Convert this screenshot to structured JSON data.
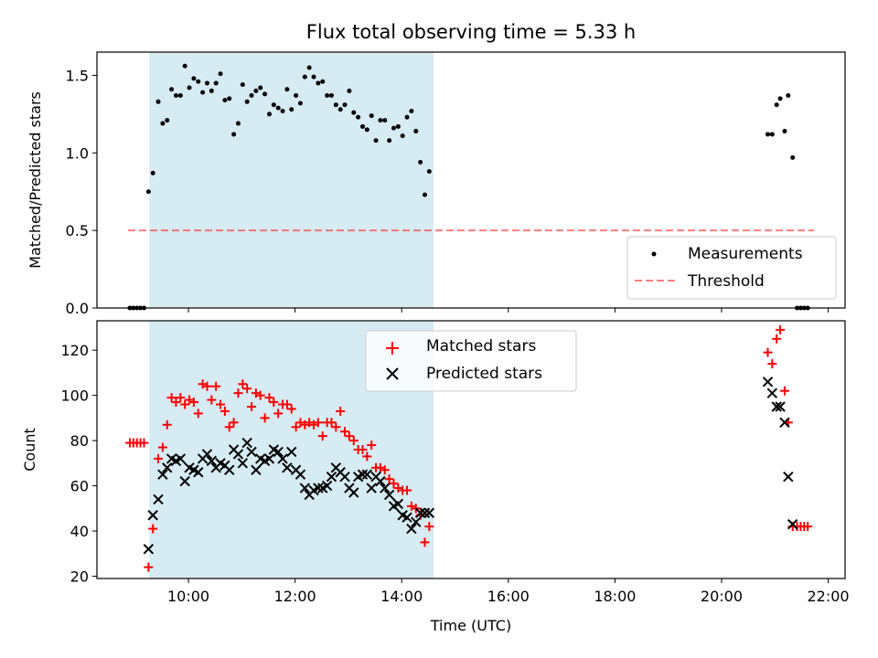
{
  "colors": {
    "shade": "#add8e6",
    "measurement": "#000000",
    "threshold": "#ff0000",
    "matched": "#ff0000",
    "predicted": "#000000"
  },
  "chart_data": [
    {
      "type": "scatter",
      "title": "Flux total observing time = 5.33 h",
      "xlabel": "",
      "ylabel": "Matched/Predicted stars",
      "xlim": [
        "08:17",
        "22:19"
      ],
      "ylim": [
        0,
        1.65
      ],
      "yticks": [
        "0.0",
        "0.5",
        "1.0",
        "1.5"
      ],
      "shaded_interval": [
        "09:16",
        "14:36"
      ],
      "legend": {
        "position": "lower right",
        "entries": [
          "Measurements",
          "Threshold"
        ]
      },
      "threshold": {
        "name": "Threshold",
        "x": [
          "08:52",
          "21:44"
        ],
        "y": 0.5
      },
      "series": [
        {
          "name": "Measurements",
          "marker": "dot",
          "points": [
            [
              "08:54",
              0.0
            ],
            [
              "08:58",
              0.0
            ],
            [
              "09:02",
              0.0
            ],
            [
              "09:06",
              0.0
            ],
            [
              "09:10",
              0.0
            ],
            [
              "09:15",
              0.75
            ],
            [
              "09:20",
              0.87
            ],
            [
              "09:26",
              1.33
            ],
            [
              "09:31",
              1.19
            ],
            [
              "09:36",
              1.21
            ],
            [
              "09:41",
              1.41
            ],
            [
              "09:46",
              1.37
            ],
            [
              "09:51",
              1.37
            ],
            [
              "09:56",
              1.56
            ],
            [
              "10:01",
              1.42
            ],
            [
              "10:06",
              1.48
            ],
            [
              "10:11",
              1.46
            ],
            [
              "10:16",
              1.39
            ],
            [
              "10:21",
              1.45
            ],
            [
              "10:26",
              1.4
            ],
            [
              "10:31",
              1.45
            ],
            [
              "10:36",
              1.51
            ],
            [
              "10:41",
              1.34
            ],
            [
              "10:46",
              1.35
            ],
            [
              "10:51",
              1.12
            ],
            [
              "10:56",
              1.19
            ],
            [
              "11:01",
              1.44
            ],
            [
              "11:06",
              1.33
            ],
            [
              "11:11",
              1.37
            ],
            [
              "11:16",
              1.4
            ],
            [
              "11:21",
              1.42
            ],
            [
              "11:26",
              1.38
            ],
            [
              "11:31",
              1.25
            ],
            [
              "11:36",
              1.31
            ],
            [
              "11:41",
              1.29
            ],
            [
              "11:46",
              1.27
            ],
            [
              "11:51",
              1.41
            ],
            [
              "11:56",
              1.28
            ],
            [
              "12:01",
              1.37
            ],
            [
              "12:06",
              1.32
            ],
            [
              "12:11",
              1.49
            ],
            [
              "12:16",
              1.55
            ],
            [
              "12:21",
              1.49
            ],
            [
              "12:26",
              1.45
            ],
            [
              "12:31",
              1.46
            ],
            [
              "12:36",
              1.37
            ],
            [
              "12:41",
              1.37
            ],
            [
              "12:46",
              1.31
            ],
            [
              "12:51",
              1.28
            ],
            [
              "12:56",
              1.31
            ],
            [
              "13:01",
              1.4
            ],
            [
              "13:06",
              1.26
            ],
            [
              "13:11",
              1.23
            ],
            [
              "13:16",
              1.17
            ],
            [
              "13:21",
              1.15
            ],
            [
              "13:26",
              1.24
            ],
            [
              "13:31",
              1.08
            ],
            [
              "13:36",
              1.21
            ],
            [
              "13:41",
              1.21
            ],
            [
              "13:46",
              1.08
            ],
            [
              "13:51",
              1.16
            ],
            [
              "13:56",
              1.17
            ],
            [
              "14:01",
              1.11
            ],
            [
              "14:06",
              1.23
            ],
            [
              "14:11",
              1.27
            ],
            [
              "14:16",
              1.14
            ],
            [
              "14:21",
              0.94
            ],
            [
              "14:26",
              0.73
            ],
            [
              "14:31",
              0.88
            ],
            [
              "20:52",
              1.12
            ],
            [
              "20:57",
              1.12
            ],
            [
              "21:02",
              1.31
            ],
            [
              "21:06",
              1.35
            ],
            [
              "21:11",
              1.14
            ],
            [
              "21:15",
              1.37
            ],
            [
              "21:20",
              0.97
            ],
            [
              "21:25",
              0.0
            ],
            [
              "21:29",
              0.0
            ],
            [
              "21:33",
              0.0
            ],
            [
              "21:37",
              0.0
            ]
          ]
        }
      ]
    },
    {
      "type": "scatter",
      "title": "",
      "xlabel": "Time (UTC)",
      "ylabel": "Count",
      "xlim": [
        "08:17",
        "22:19"
      ],
      "ylim": [
        19,
        133
      ],
      "yticks": [
        "20",
        "40",
        "60",
        "80",
        "100",
        "120"
      ],
      "xticks": [
        "10:00",
        "12:00",
        "14:00",
        "16:00",
        "18:00",
        "20:00",
        "22:00"
      ],
      "shaded_interval": [
        "09:16",
        "14:36"
      ],
      "legend": {
        "position": "upper center",
        "entries": [
          "Matched stars",
          "Predicted stars"
        ]
      },
      "series": [
        {
          "name": "Matched stars",
          "marker": "plus",
          "points": [
            [
              "08:54",
              79
            ],
            [
              "08:58",
              79
            ],
            [
              "09:02",
              79
            ],
            [
              "09:06",
              79
            ],
            [
              "09:10",
              79
            ],
            [
              "09:15",
              24
            ],
            [
              "09:20",
              41
            ],
            [
              "09:26",
              72
            ],
            [
              "09:31",
              77
            ],
            [
              "09:36",
              87
            ],
            [
              "09:41",
              99
            ],
            [
              "09:46",
              97
            ],
            [
              "09:51",
              99
            ],
            [
              "09:56",
              96
            ],
            [
              "10:01",
              98
            ],
            [
              "10:06",
              97
            ],
            [
              "10:11",
              92
            ],
            [
              "10:16",
              105
            ],
            [
              "10:21",
              104
            ],
            [
              "10:26",
              98
            ],
            [
              "10:31",
              104
            ],
            [
              "10:36",
              96
            ],
            [
              "10:41",
              93
            ],
            [
              "10:46",
              86
            ],
            [
              "10:51",
              88
            ],
            [
              "10:56",
              101
            ],
            [
              "11:01",
              105
            ],
            [
              "11:06",
              103
            ],
            [
              "11:11",
              95
            ],
            [
              "11:16",
              101
            ],
            [
              "11:21",
              100
            ],
            [
              "11:26",
              90
            ],
            [
              "11:31",
              99
            ],
            [
              "11:36",
              97
            ],
            [
              "11:41",
              92
            ],
            [
              "11:46",
              96
            ],
            [
              "11:51",
              96
            ],
            [
              "11:56",
              94
            ],
            [
              "12:01",
              86
            ],
            [
              "12:06",
              88
            ],
            [
              "12:11",
              87
            ],
            [
              "12:16",
              88
            ],
            [
              "12:21",
              87
            ],
            [
              "12:26",
              88
            ],
            [
              "12:31",
              82
            ],
            [
              "12:36",
              88
            ],
            [
              "12:41",
              88
            ],
            [
              "12:46",
              86
            ],
            [
              "12:51",
              93
            ],
            [
              "12:56",
              84
            ],
            [
              "13:01",
              82
            ],
            [
              "13:06",
              80
            ],
            [
              "13:11",
              76
            ],
            [
              "13:16",
              76
            ],
            [
              "13:21",
              73
            ],
            [
              "13:26",
              78
            ],
            [
              "13:31",
              68
            ],
            [
              "13:36",
              68
            ],
            [
              "13:41",
              67
            ],
            [
              "13:46",
              63
            ],
            [
              "13:51",
              61
            ],
            [
              "13:56",
              59
            ],
            [
              "14:01",
              58
            ],
            [
              "14:06",
              58
            ],
            [
              "14:11",
              51
            ],
            [
              "14:16",
              50
            ],
            [
              "14:21",
              47
            ],
            [
              "14:26",
              35
            ],
            [
              "14:31",
              42
            ],
            [
              "20:52",
              119
            ],
            [
              "20:57",
              114
            ],
            [
              "21:02",
              125
            ],
            [
              "21:06",
              129
            ],
            [
              "21:11",
              102
            ],
            [
              "21:15",
              88
            ],
            [
              "21:20",
              42
            ],
            [
              "21:25",
              42
            ],
            [
              "21:29",
              42
            ],
            [
              "21:33",
              42
            ],
            [
              "21:37",
              42
            ]
          ]
        },
        {
          "name": "Predicted stars",
          "marker": "x",
          "points": [
            [
              "09:15",
              32
            ],
            [
              "09:20",
              47
            ],
            [
              "09:26",
              54
            ],
            [
              "09:31",
              65
            ],
            [
              "09:36",
              68
            ],
            [
              "09:41",
              72
            ],
            [
              "09:46",
              71
            ],
            [
              "09:51",
              72
            ],
            [
              "09:56",
              62
            ],
            [
              "10:01",
              68
            ],
            [
              "10:06",
              67
            ],
            [
              "10:11",
              66
            ],
            [
              "10:16",
              72
            ],
            [
              "10:21",
              74
            ],
            [
              "10:26",
              71
            ],
            [
              "10:31",
              68
            ],
            [
              "10:36",
              70
            ],
            [
              "10:41",
              69
            ],
            [
              "10:46",
              67
            ],
            [
              "10:51",
              76
            ],
            [
              "10:56",
              74
            ],
            [
              "11:01",
              70
            ],
            [
              "11:06",
              79
            ],
            [
              "11:11",
              75
            ],
            [
              "11:16",
              67
            ],
            [
              "11:21",
              72
            ],
            [
              "11:26",
              71
            ],
            [
              "11:31",
              72
            ],
            [
              "11:36",
              76
            ],
            [
              "11:41",
              75
            ],
            [
              "11:46",
              72
            ],
            [
              "11:51",
              68
            ],
            [
              "11:56",
              75
            ],
            [
              "12:01",
              67
            ],
            [
              "12:06",
              65
            ],
            [
              "12:11",
              59
            ],
            [
              "12:16",
              56
            ],
            [
              "12:21",
              58
            ],
            [
              "12:26",
              59
            ],
            [
              "12:31",
              59
            ],
            [
              "12:36",
              60
            ],
            [
              "12:41",
              64
            ],
            [
              "12:46",
              68
            ],
            [
              "12:51",
              66
            ],
            [
              "12:56",
              64
            ],
            [
              "13:01",
              59
            ],
            [
              "13:06",
              57
            ],
            [
              "13:11",
              64
            ],
            [
              "13:16",
              65
            ],
            [
              "13:21",
              65
            ],
            [
              "13:26",
              59
            ],
            [
              "13:31",
              64
            ],
            [
              "13:36",
              62
            ],
            [
              "13:41",
              59
            ],
            [
              "13:46",
              56
            ],
            [
              "13:51",
              51
            ],
            [
              "13:56",
              52
            ],
            [
              "14:01",
              47
            ],
            [
              "14:06",
              46
            ],
            [
              "14:11",
              41
            ],
            [
              "14:16",
              44
            ],
            [
              "14:21",
              48
            ],
            [
              "14:26",
              48
            ],
            [
              "14:31",
              48
            ],
            [
              "20:52",
              106
            ],
            [
              "20:57",
              101
            ],
            [
              "21:02",
              95
            ],
            [
              "21:06",
              95
            ],
            [
              "21:11",
              88
            ],
            [
              "21:15",
              64
            ],
            [
              "21:20",
              43
            ]
          ]
        }
      ]
    }
  ]
}
